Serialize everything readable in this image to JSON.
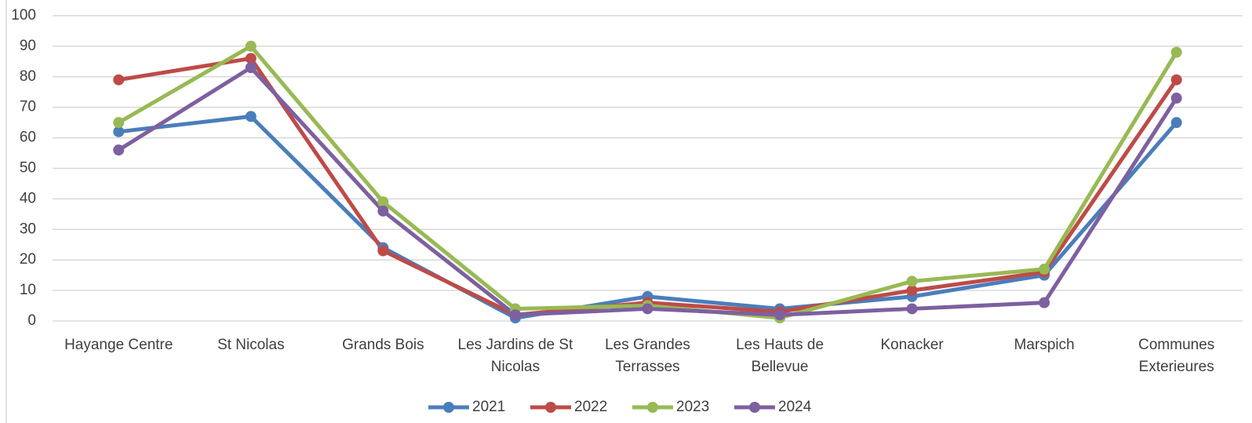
{
  "chart_data": {
    "type": "line",
    "categories": [
      "Hayange Centre",
      "St Nicolas",
      "Grands Bois",
      "Les Jardins de St Nicolas",
      "Les Grandes Terrasses",
      "Les Hauts de Bellevue",
      "Konacker",
      "Marspich",
      "Communes Exterieures"
    ],
    "series": [
      {
        "name": "2021",
        "color": "#4a7ebb",
        "values": [
          62,
          67,
          24,
          1,
          8,
          4,
          8,
          15,
          65
        ]
      },
      {
        "name": "2022",
        "color": "#be4b48",
        "values": [
          79,
          86,
          23,
          2,
          6,
          3,
          10,
          16,
          79
        ]
      },
      {
        "name": "2023",
        "color": "#98b954",
        "values": [
          65,
          90,
          39,
          4,
          5,
          1,
          13,
          17,
          88
        ]
      },
      {
        "name": "2024",
        "color": "#7d60a0",
        "values": [
          56,
          83,
          36,
          2,
          4,
          2,
          4,
          6,
          73
        ]
      }
    ],
    "ylim": [
      0,
      100
    ],
    "yticks": [
      0,
      10,
      20,
      30,
      40,
      50,
      60,
      70,
      80,
      90,
      100
    ],
    "grid": true,
    "legend": "bottom"
  }
}
